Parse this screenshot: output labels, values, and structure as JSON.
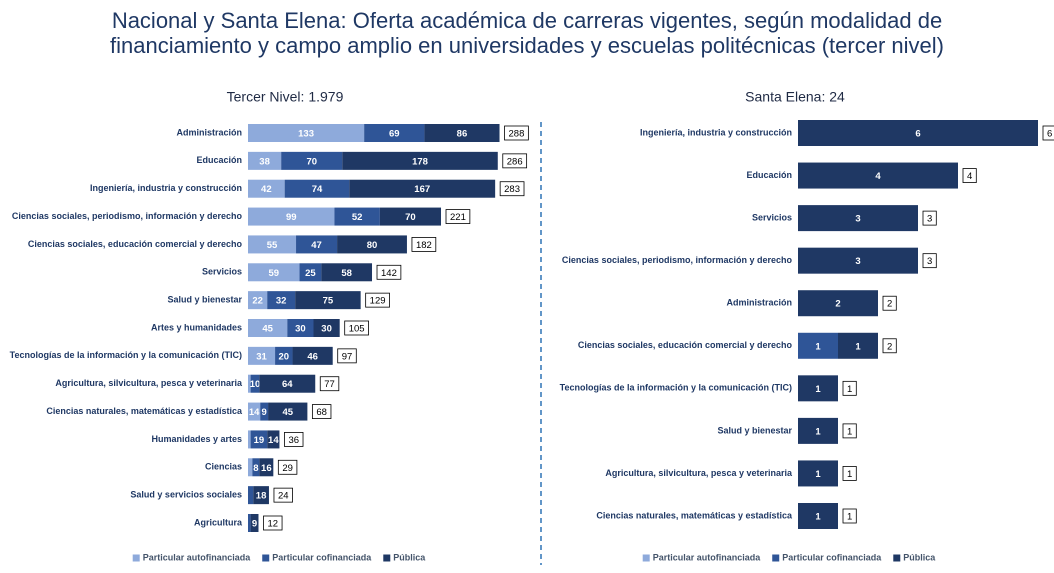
{
  "title": "Nacional y Santa Elena: Oferta académica de carreras vigentes, según modalidad de financiamiento y campo amplio en universidades y escuelas politécnicas (tercer nivel)",
  "chart_data": [
    {
      "type": "stacked-bar-horizontal",
      "title": "Tercer Nivel: 1.979",
      "categories": [
        "Administración",
        "Educación",
        "Ingeniería, industria y construcción",
        "Ciencias sociales, periodismo, información y derecho",
        "Ciencias sociales, educación comercial y derecho",
        "Servicios",
        "Salud y bienestar",
        "Artes y humanidades",
        "Tecnologías de la información y la comunicación (TIC)",
        "Agricultura, silvicultura, pesca y veterinaria",
        "Ciencias naturales, matemáticas y estadística",
        "Humanidades y artes",
        "Ciencias",
        "Salud y servicios sociales",
        "Agricultura"
      ],
      "series": [
        {
          "name": "Particular autofinanciada",
          "color": "#8eaadb",
          "values": [
            133,
            38,
            42,
            99,
            55,
            59,
            22,
            45,
            31,
            3,
            14,
            3,
            5,
            null,
            null
          ]
        },
        {
          "name": "Particular cofinanciada",
          "color": "#2f5597",
          "values": [
            69,
            70,
            74,
            52,
            47,
            25,
            32,
            30,
            20,
            10,
            9,
            19,
            8,
            6,
            3
          ]
        },
        {
          "name": "Pública",
          "color": "#1f3864",
          "values": [
            86,
            178,
            167,
            70,
            80,
            58,
            75,
            30,
            46,
            64,
            45,
            14,
            16,
            18,
            9
          ]
        }
      ],
      "totals": [
        288,
        286,
        283,
        221,
        182,
        142,
        129,
        105,
        97,
        77,
        68,
        36,
        29,
        24,
        12
      ],
      "xlim": [
        0,
        300
      ],
      "legend": "bottom"
    },
    {
      "type": "stacked-bar-horizontal",
      "title": "Santa Elena:  24",
      "categories": [
        "Ingeniería, industria y construcción",
        "Educación",
        "Servicios",
        "Ciencias sociales, periodismo, información y derecho",
        "Administración",
        "Ciencias sociales, educación comercial y derecho",
        "Tecnologías de la información y la comunicación (TIC)",
        "Salud y bienestar",
        "Agricultura, silvicultura, pesca y veterinaria",
        "Ciencias naturales, matemáticas y estadística"
      ],
      "series": [
        {
          "name": "Particular autofinanciada",
          "color": "#8eaadb",
          "values": [
            null,
            null,
            null,
            null,
            null,
            null,
            null,
            null,
            null,
            null
          ]
        },
        {
          "name": "Particular cofinanciada",
          "color": "#2f5597",
          "values": [
            null,
            null,
            null,
            null,
            null,
            1,
            null,
            null,
            null,
            null
          ]
        },
        {
          "name": "Pública",
          "color": "#1f3864",
          "values": [
            6,
            4,
            3,
            3,
            2,
            1,
            1,
            1,
            1,
            1
          ]
        }
      ],
      "totals": [
        6,
        4,
        3,
        3,
        2,
        2,
        1,
        1,
        1,
        1
      ],
      "xlim": [
        0,
        6
      ],
      "legend": "bottom"
    }
  ]
}
